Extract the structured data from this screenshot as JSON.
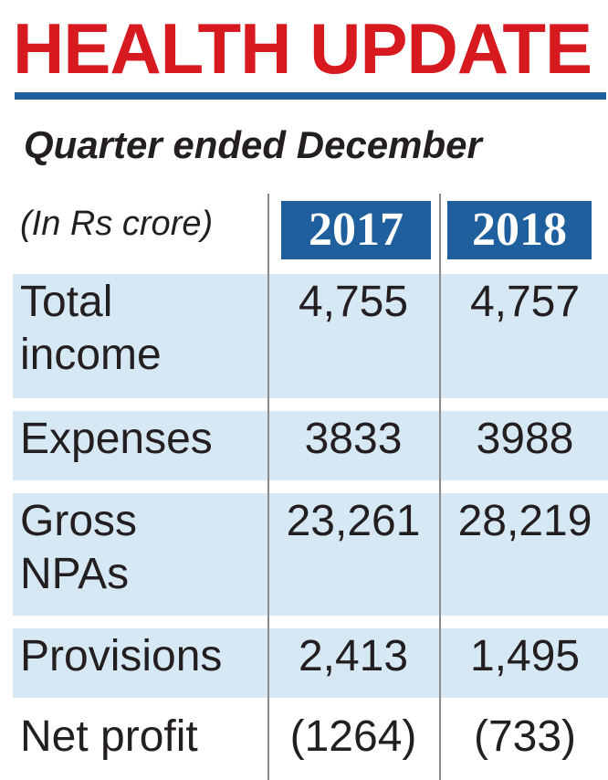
{
  "chart_data": {
    "type": "table",
    "title": "HEALTH UPDATE",
    "subtitle": "Quarter ended December",
    "unit_label": "(In Rs crore)",
    "columns": [
      "2017",
      "2018"
    ],
    "rows": [
      {
        "label": "Total\nincome",
        "values": [
          "4,755",
          "4,757"
        ]
      },
      {
        "label": "Expenses",
        "values": [
          "3833",
          "3988"
        ]
      },
      {
        "label": "Gross\nNPAs",
        "values": [
          "23,261",
          "28,219"
        ]
      },
      {
        "label": "Provisions",
        "values": [
          "2,413",
          "1,495"
        ]
      },
      {
        "label": "Net profit",
        "values": [
          "(1264)",
          "(733)"
        ]
      }
    ],
    "colors": {
      "title": "#d71920",
      "header_fill": "#1f5f9e",
      "row_fill": "#d5e8f3"
    }
  }
}
